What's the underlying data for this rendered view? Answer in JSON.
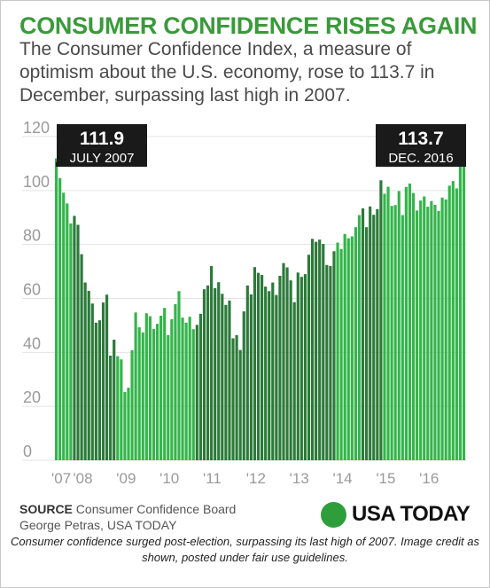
{
  "header": {
    "title": "CONSUMER CONFIDENCE RISES AGAIN",
    "subtitle": "The Consumer Confidence Index, a measure of optimism about the U.S. economy, rose to 113.7 in December, surpassing last high in 2007."
  },
  "source": {
    "label": "SOURCE",
    "text": "Consumer Confidence Board",
    "credit": "George Petras, USA TODAY"
  },
  "logo": {
    "text": "USA TODAY"
  },
  "caption": "Consumer confidence surged post-election, surpassing its last high of 2007. Image credit as shown, posted under fair use guidelines.",
  "colors": {
    "bright_green": "#33b54a",
    "dark_green": "#2b7a39",
    "title_green": "#3a9a3a",
    "callout": "#1a1a1a"
  },
  "chart_data": {
    "type": "bar",
    "title": "CONSUMER CONFIDENCE RISES AGAIN",
    "ylim": [
      0,
      120
    ],
    "yticks": [
      0,
      20,
      40,
      60,
      80,
      100,
      120
    ],
    "xtick_labels": [
      "'07",
      "'08",
      "'09",
      "'10",
      "'11",
      "'12",
      "'13",
      "'14",
      "'15",
      "'16"
    ],
    "grid": true,
    "x": [
      "2007-07",
      "2007-08",
      "2007-09",
      "2007-10",
      "2007-11",
      "2007-12",
      "2008-01",
      "2008-02",
      "2008-03",
      "2008-04",
      "2008-05",
      "2008-06",
      "2008-07",
      "2008-08",
      "2008-09",
      "2008-10",
      "2008-11",
      "2008-12",
      "2009-01",
      "2009-02",
      "2009-03",
      "2009-04",
      "2009-05",
      "2009-06",
      "2009-07",
      "2009-08",
      "2009-09",
      "2009-10",
      "2009-11",
      "2009-12",
      "2010-01",
      "2010-02",
      "2010-03",
      "2010-04",
      "2010-05",
      "2010-06",
      "2010-07",
      "2010-08",
      "2010-09",
      "2010-10",
      "2010-11",
      "2010-12",
      "2011-01",
      "2011-02",
      "2011-03",
      "2011-04",
      "2011-05",
      "2011-06",
      "2011-07",
      "2011-08",
      "2011-09",
      "2011-10",
      "2011-11",
      "2011-12",
      "2012-01",
      "2012-02",
      "2012-03",
      "2012-04",
      "2012-05",
      "2012-06",
      "2012-07",
      "2012-08",
      "2012-09",
      "2012-10",
      "2012-11",
      "2012-12",
      "2013-01",
      "2013-02",
      "2013-03",
      "2013-04",
      "2013-05",
      "2013-06",
      "2013-07",
      "2013-08",
      "2013-09",
      "2013-10",
      "2013-11",
      "2013-12",
      "2014-01",
      "2014-02",
      "2014-03",
      "2014-04",
      "2014-05",
      "2014-06",
      "2014-07",
      "2014-08",
      "2014-09",
      "2014-10",
      "2014-11",
      "2014-12",
      "2015-01",
      "2015-02",
      "2015-03",
      "2015-04",
      "2015-05",
      "2015-06",
      "2015-07",
      "2015-08",
      "2015-09",
      "2015-10",
      "2015-11",
      "2015-12",
      "2016-01",
      "2016-02",
      "2016-03",
      "2016-04",
      "2016-05",
      "2016-06",
      "2016-07",
      "2016-08",
      "2016-09",
      "2016-10",
      "2016-11",
      "2016-12"
    ],
    "values": [
      111.9,
      104.6,
      99.2,
      95.2,
      87.8,
      90.6,
      87.3,
      76.4,
      65.9,
      62.8,
      58.1,
      51.0,
      51.9,
      58.5,
      61.4,
      38.8,
      44.7,
      38.6,
      37.4,
      25.3,
      26.9,
      40.8,
      54.8,
      49.3,
      47.4,
      54.5,
      53.4,
      48.7,
      50.6,
      53.6,
      56.5,
      46.4,
      52.3,
      57.9,
      62.7,
      52.9,
      51.0,
      53.2,
      48.6,
      50.2,
      54.3,
      63.4,
      64.8,
      72.0,
      63.8,
      66.0,
      61.7,
      57.6,
      59.2,
      45.2,
      46.4,
      40.9,
      55.2,
      64.8,
      61.5,
      71.6,
      69.5,
      68.7,
      64.4,
      62.7,
      65.9,
      61.3,
      68.4,
      73.1,
      71.5,
      66.7,
      58.6,
      69.6,
      68.0,
      69.0,
      76.2,
      82.1,
      81.0,
      81.8,
      80.2,
      72.4,
      72.0,
      77.5,
      80.7,
      78.3,
      83.9,
      82.3,
      83.0,
      86.4,
      90.9,
      93.4,
      86.4,
      94.1,
      91.0,
      93.1,
      103.8,
      98.8,
      101.4,
      94.3,
      94.6,
      99.8,
      90.9,
      101.3,
      102.6,
      99.1,
      92.6,
      96.3,
      97.8,
      94.0,
      96.1,
      94.7,
      92.4,
      97.4,
      96.7,
      101.8,
      103.5,
      100.8,
      109.4,
      113.7
    ],
    "callouts": [
      {
        "value": "111.9",
        "label": "JULY 2007"
      },
      {
        "value": "113.7",
        "label": "DEC. 2016"
      }
    ]
  }
}
